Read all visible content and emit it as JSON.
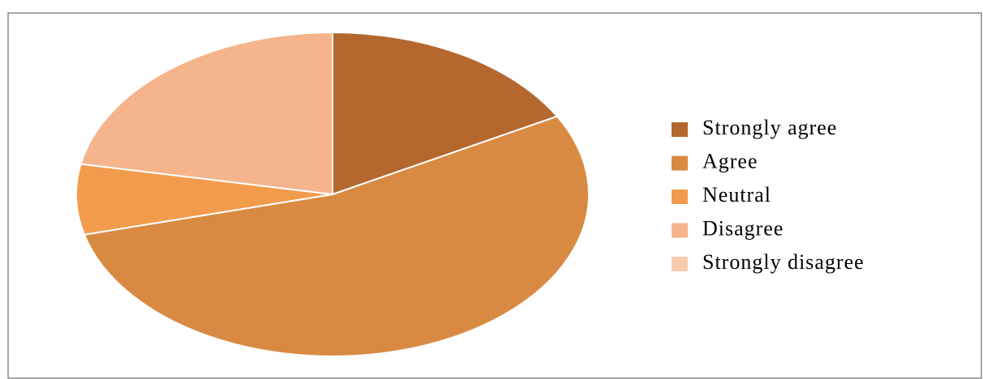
{
  "chart_data": {
    "type": "pie",
    "categories": [
      "Strongly agree",
      "Agree",
      "Neutral",
      "Disagree",
      "Strongly disagree"
    ],
    "values": [
      17,
      54,
      7,
      22,
      0
    ],
    "colors": [
      "#b4682e",
      "#d98a42",
      "#f39b4c",
      "#f5b48c",
      "#f8cbad"
    ],
    "legend": "right"
  }
}
